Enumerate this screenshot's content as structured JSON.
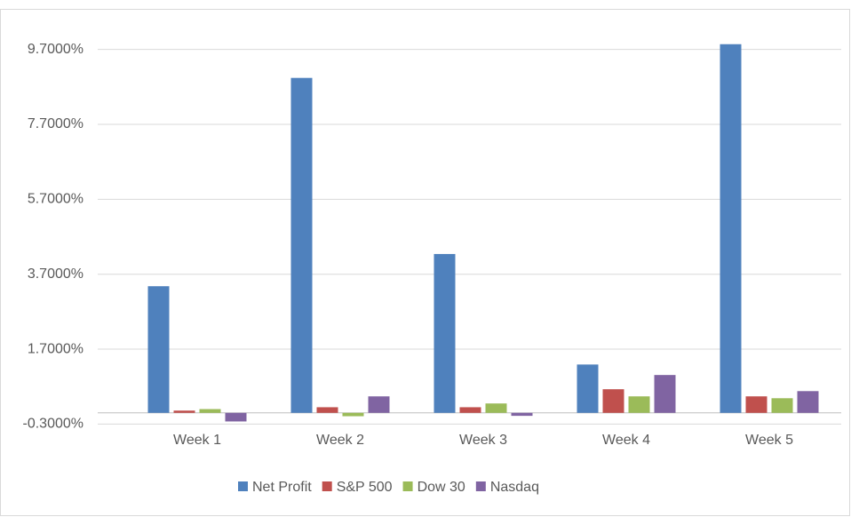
{
  "chart_data": {
    "type": "bar",
    "categories": [
      "Week 1",
      "Week 2",
      "Week 3",
      "Week 4",
      "Week 5"
    ],
    "series": [
      {
        "name": "Net Profit",
        "color": "#4f81bd",
        "values": [
          3.38,
          8.94,
          4.24,
          1.29,
          9.84
        ]
      },
      {
        "name": "S&P 500",
        "color": "#c0504d",
        "values": [
          0.06,
          0.15,
          0.15,
          0.63,
          0.44
        ]
      },
      {
        "name": "Dow 30",
        "color": "#9bbb59",
        "values": [
          0.1,
          -0.09,
          0.25,
          0.44,
          0.39
        ]
      },
      {
        "name": "Nasdaq",
        "color": "#8064a2",
        "values": [
          -0.23,
          0.44,
          -0.08,
          1.01,
          0.58
        ]
      }
    ],
    "ylim": [
      -0.3,
      10.0
    ],
    "yticks": [
      {
        "value": -0.3,
        "label": "-0.3000%"
      },
      {
        "value": 1.7,
        "label": "1.7000%"
      },
      {
        "value": 3.7,
        "label": "3.7000%"
      },
      {
        "value": 5.7,
        "label": "5.7000%"
      },
      {
        "value": 7.7,
        "label": "7.7000%"
      },
      {
        "value": 9.7,
        "label": "9.7000%"
      }
    ],
    "grid": true,
    "legend": "bottom"
  }
}
